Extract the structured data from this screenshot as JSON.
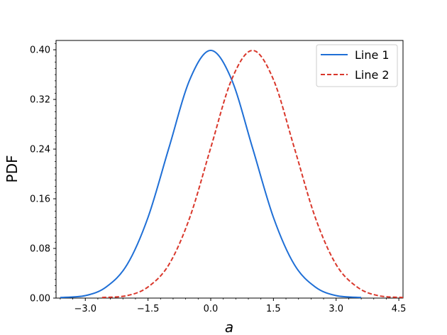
{
  "chart_data": {
    "type": "line",
    "xlabel": "a",
    "ylabel": "PDF",
    "xlim": [
      -3.7,
      4.6
    ],
    "ylim": [
      0.0,
      0.415
    ],
    "xticks": [
      "−3.0",
      "−1.5",
      "0.0",
      "1.5",
      "3.0",
      "4.5"
    ],
    "xtick_values": [
      -3.0,
      -1.5,
      0.0,
      1.5,
      3.0,
      4.5
    ],
    "yticks": [
      "0.00",
      "0.08",
      "0.16",
      "0.24",
      "0.32",
      "0.40"
    ],
    "ytick_values": [
      0.0,
      0.08,
      0.16,
      0.24,
      0.32,
      0.4
    ],
    "legend_position": "top-right",
    "grid": false,
    "series": [
      {
        "name": "Line 1",
        "color": "#1f6fd6",
        "linestyle": "solid",
        "x": [
          -3.6,
          -3.0,
          -2.5,
          -2.0,
          -1.5,
          -1.0,
          -0.5,
          0.0,
          0.5,
          1.0,
          1.5,
          2.0,
          2.5,
          3.0,
          3.6
        ],
        "y": [
          0.001,
          0.004,
          0.018,
          0.054,
          0.13,
          0.242,
          0.352,
          0.399,
          0.352,
          0.242,
          0.13,
          0.054,
          0.018,
          0.004,
          0.001
        ]
      },
      {
        "name": "Line 2",
        "color": "#d9372b",
        "linestyle": "dashed",
        "x": [
          -2.6,
          -2.0,
          -1.5,
          -1.0,
          -0.5,
          0.0,
          0.5,
          1.0,
          1.5,
          2.0,
          2.5,
          3.0,
          3.5,
          4.0,
          4.6
        ],
        "y": [
          0.001,
          0.004,
          0.018,
          0.054,
          0.13,
          0.242,
          0.352,
          0.399,
          0.352,
          0.242,
          0.13,
          0.054,
          0.018,
          0.004,
          0.001
        ]
      }
    ]
  }
}
